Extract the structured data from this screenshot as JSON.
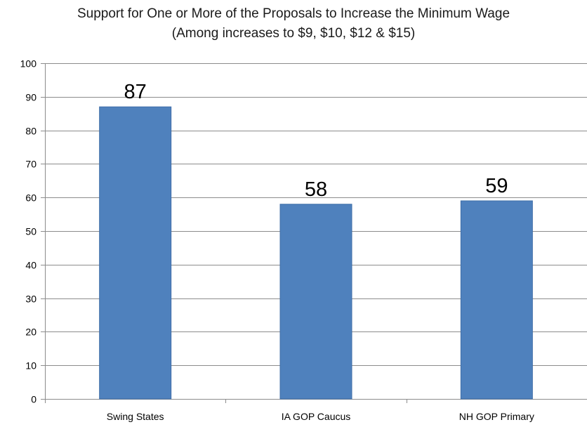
{
  "chart_data": {
    "type": "bar",
    "title": "Support for One or More of the Proposals to Increase the Minimum Wage",
    "subtitle": "(Among increases to $9, $10,  $12  & $15)",
    "categories": [
      "Swing States",
      "IA GOP Caucus",
      "NH GOP Primary"
    ],
    "values": [
      87,
      58,
      59
    ],
    "data_labels": [
      "87",
      "58",
      "59"
    ],
    "ylim": [
      0,
      100
    ],
    "yticks": [
      "0",
      "10",
      "20",
      "30",
      "40",
      "50",
      "60",
      "70",
      "80",
      "90",
      "100"
    ],
    "xlabel": "",
    "ylabel": "",
    "grid": true,
    "legend": "none",
    "bar_color": "#4f81bd",
    "bar_border_color": "#3f6ea8",
    "grid_color": "#8c8c8c",
    "axis_color": "#8c8c8c"
  }
}
